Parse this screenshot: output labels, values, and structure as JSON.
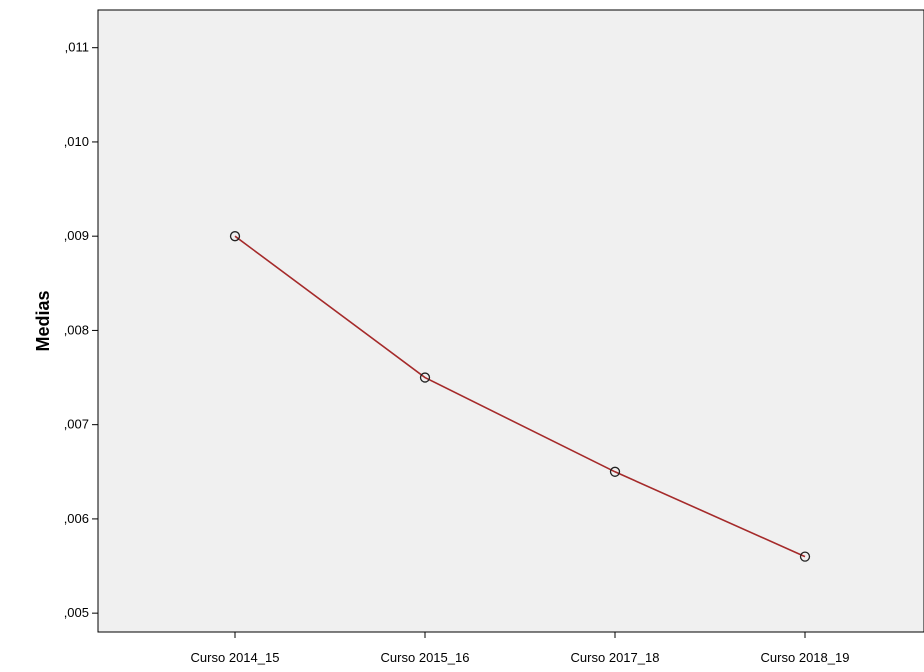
{
  "chart_data": {
    "type": "line",
    "title": "",
    "xlabel": "",
    "ylabel": "Medias",
    "categories": [
      "Curso 2014_15",
      "Curso 2015_16",
      "Curso 2017_18",
      "Curso 2018_19"
    ],
    "series": [
      {
        "values": [
          0.009,
          0.0075,
          0.0065,
          0.0056
        ]
      }
    ],
    "ylim": [
      0.0048,
      0.0114
    ],
    "yticks": [
      0.005,
      0.006,
      0.007,
      0.008,
      0.009,
      0.01,
      0.011
    ],
    "ytick_labels": [
      ",005",
      ",006",
      ",007",
      ",008",
      ",009",
      ",010",
      ",011"
    ],
    "grid": false,
    "legend": "none",
    "colors": {
      "plot_background": "#f0f0f0",
      "line": "#a52a2a",
      "marker_edge": "#222222"
    }
  }
}
